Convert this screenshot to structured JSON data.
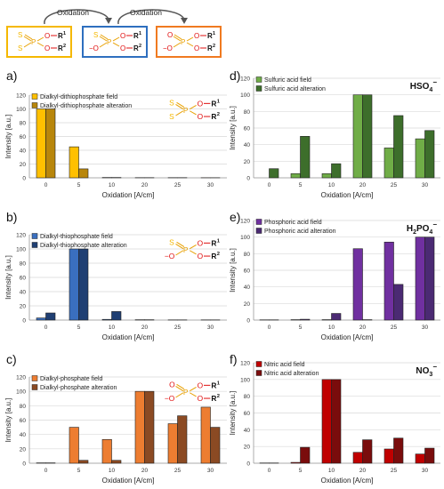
{
  "scheme": {
    "steps": [
      "Oxidation",
      "Oxidation"
    ],
    "boxes": [
      {
        "color": "#f5b800",
        "top_atom": "S",
        "left_atom": "S",
        "charge": "",
        "label": "dithiophosphate"
      },
      {
        "color": "#2e6fbf",
        "top_atom": "S",
        "left_atom": "O",
        "charge": "−",
        "label": "thiophosphate"
      },
      {
        "color": "#f07a20",
        "top_atom": "O",
        "left_atom": "O",
        "charge": "−",
        "label": "phosphate"
      }
    ],
    "atoms": {
      "P": "P",
      "O": "O",
      "R1": "R",
      "R2": "R",
      "sup1": "1",
      "sup2": "2"
    }
  },
  "chart_data": [
    {
      "type": "bar",
      "panel": "a)",
      "categories": [
        "0",
        "5",
        "10",
        "20",
        "25",
        "30"
      ],
      "xlabel": "Oxidation [A/cm]",
      "ylabel": "Intensity [a.u.]",
      "ylim": [
        0,
        120
      ],
      "yticks": [
        "0",
        "20",
        "40",
        "60",
        "80",
        "100",
        "120"
      ],
      "series": [
        {
          "name": "Dialkyl-dithiophosphate field",
          "color": "#ffc000",
          "values": [
            100,
            45,
            0.5,
            0.3,
            0.3,
            0.2
          ]
        },
        {
          "name": "Dialkyl-dithiophosphate alteration",
          "color": "#b8860b",
          "values": [
            100,
            13,
            0.5,
            0.3,
            0.3,
            0.2
          ]
        }
      ],
      "annotation": {
        "kind": "molecule",
        "top_atom": "S",
        "left_atom": "S",
        "charge": "",
        "color": "#f5b800"
      }
    },
    {
      "type": "bar",
      "panel": "b)",
      "categories": [
        "0",
        "5",
        "10",
        "20",
        "25",
        "30"
      ],
      "xlabel": "Oxidation [A/cm]",
      "ylabel": "Intensity [a.u.]",
      "ylim": [
        0,
        120
      ],
      "yticks": [
        "0",
        "20",
        "40",
        "60",
        "80",
        "100",
        "120"
      ],
      "series": [
        {
          "name": "Dialkyl-thiophosphate field",
          "color": "#3a6fbf",
          "values": [
            3,
            100,
            1,
            0.5,
            0.3,
            0.3
          ]
        },
        {
          "name": "Dialkyl-thiophosphate alteration",
          "color": "#1f3f73",
          "values": [
            10,
            100,
            12,
            0.5,
            0.3,
            0.3
          ]
        }
      ],
      "annotation": {
        "kind": "molecule",
        "top_atom": "S",
        "left_atom": "O",
        "charge": "−",
        "color": "#2e6fbf"
      }
    },
    {
      "type": "bar",
      "panel": "c)",
      "categories": [
        "0",
        "5",
        "10",
        "20",
        "25",
        "30"
      ],
      "xlabel": "Oxidation [A/cm]",
      "ylabel": "Intensity [a.u.]",
      "ylim": [
        0,
        120
      ],
      "yticks": [
        "0",
        "20",
        "40",
        "60",
        "80",
        "100",
        "120"
      ],
      "series": [
        {
          "name": "Dialkyl-phosphate field",
          "color": "#ed7d31",
          "values": [
            0.5,
            50,
            33,
            100,
            55,
            78
          ]
        },
        {
          "name": "Dialkyl-phosphate alteration",
          "color": "#8b4a23",
          "values": [
            0.5,
            4,
            4,
            100,
            66,
            50
          ]
        }
      ],
      "annotation": {
        "kind": "molecule",
        "top_atom": "O",
        "left_atom": "O",
        "charge": "−",
        "color": "#f07a20"
      }
    },
    {
      "type": "bar",
      "panel": "d)",
      "categories": [
        "0",
        "5",
        "10",
        "20",
        "25",
        "30"
      ],
      "xlabel": "Oxidation [A/cm]",
      "ylabel": "Intensity [a.u.]",
      "ylim": [
        0,
        120
      ],
      "yticks": [
        "0",
        "20",
        "40",
        "60",
        "80",
        "100",
        "120"
      ],
      "series": [
        {
          "name": "Sulfuric acid field",
          "color": "#70ad47",
          "values": [
            0,
            5,
            5,
            100,
            36,
            47
          ]
        },
        {
          "name": "Sulfuric acid alteration",
          "color": "#3d6e2b",
          "values": [
            11,
            50,
            17,
            100,
            75,
            57
          ]
        }
      ],
      "annotation": {
        "kind": "formula",
        "main": "HSO",
        "sub": "4",
        "sup": "−"
      }
    },
    {
      "type": "bar",
      "panel": "e)",
      "categories": [
        "0",
        "5",
        "10",
        "20",
        "25",
        "30"
      ],
      "xlabel": "Oxidation [A/cm]",
      "ylabel": "Intensity [a.u.]",
      "ylim": [
        0,
        120
      ],
      "yticks": [
        "0",
        "20",
        "40",
        "60",
        "80",
        "100",
        "120"
      ],
      "series": [
        {
          "name": "Phosphoric acid field",
          "color": "#7030a0",
          "values": [
            0.3,
            0.5,
            0.5,
            86,
            94,
            100
          ]
        },
        {
          "name": "Phosphoric acid alteration",
          "color": "#4b2a73",
          "values": [
            0.3,
            1,
            8,
            0.5,
            43,
            100
          ]
        }
      ],
      "annotation": {
        "kind": "formula",
        "main": "H",
        "sub": "2",
        "main2": "PO",
        "sub2": "4",
        "sup": "−"
      }
    },
    {
      "type": "bar",
      "panel": "f)",
      "categories": [
        "0",
        "5",
        "10",
        "20",
        "25",
        "30"
      ],
      "xlabel": "Oxidation [A/cm]",
      "ylabel": "Intensity [a.u.]",
      "ylim": [
        0,
        120
      ],
      "yticks": [
        "0",
        "20",
        "40",
        "60",
        "80",
        "100",
        "120"
      ],
      "series": [
        {
          "name": "Nitric acid field",
          "color": "#c00000",
          "values": [
            0.3,
            1,
            100,
            13,
            17,
            11
          ]
        },
        {
          "name": "Nitric acid alteration",
          "color": "#7a0c0c",
          "values": [
            0.3,
            19,
            100,
            28,
            30,
            18
          ]
        }
      ],
      "annotation": {
        "kind": "formula",
        "main": "NO",
        "sub": "3",
        "sup": "−"
      }
    }
  ]
}
